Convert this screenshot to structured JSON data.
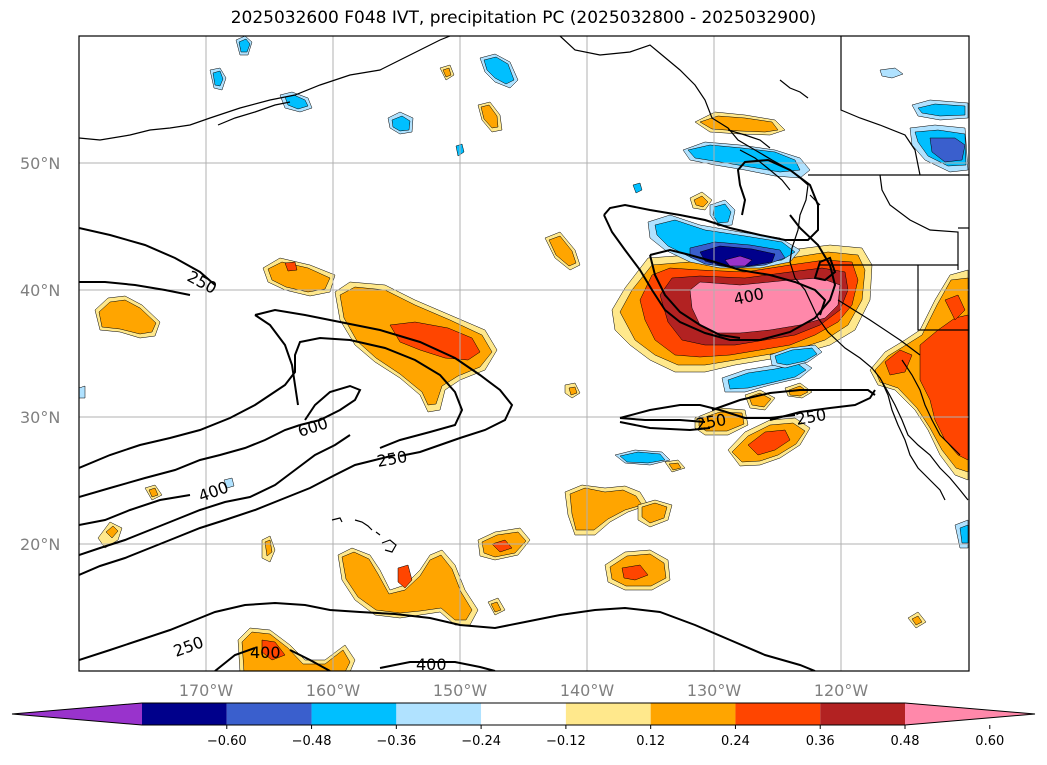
{
  "title": "2025032600 F048 IVT, precipitation PC (2025032800 - 2025032900)",
  "lat_labels": [
    {
      "text": "50°N"
    },
    {
      "text": "40°N"
    },
    {
      "text": "30°N"
    },
    {
      "text": "20°N"
    }
  ],
  "lon_labels": [
    {
      "text": "170°W"
    },
    {
      "text": "160°W"
    },
    {
      "text": "150°W"
    },
    {
      "text": "140°W"
    },
    {
      "text": "130°W"
    },
    {
      "text": "120°W"
    }
  ],
  "ivt_contour_labels": [
    "250",
    "400",
    "600",
    "250",
    "400",
    "250",
    "400",
    "250",
    "400",
    "250"
  ],
  "colorbar": {
    "ticks": [
      "−0.60",
      "−0.48",
      "−0.36",
      "−0.24",
      "−0.12",
      "0.12",
      "0.24",
      "0.36",
      "0.48",
      "0.60"
    ],
    "colors": [
      "#9933cc",
      "#00008b",
      "#3a5fcd",
      "#00bfff",
      "#b0e2ff",
      "#ffffff",
      "#ffe88c",
      "#ffa500",
      "#ff4500",
      "#b22222",
      "#ff88aa"
    ]
  },
  "palette": {
    "lightblue": "#b0e2ff",
    "blue": "#00bfff",
    "royal": "#3a5fcd",
    "navy": "#00008b",
    "purple": "#9933cc",
    "yellow": "#ffe88c",
    "orange": "#ffa500",
    "redorange": "#ff4500",
    "firebrick": "#b22222",
    "pink": "#ff88aa"
  }
}
